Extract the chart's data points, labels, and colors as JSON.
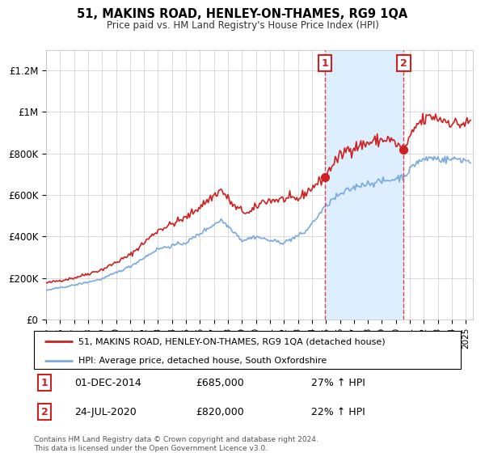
{
  "title": "51, MAKINS ROAD, HENLEY-ON-THAMES, RG9 1QA",
  "subtitle": "Price paid vs. HM Land Registry's House Price Index (HPI)",
  "legend_line1": "51, MAKINS ROAD, HENLEY-ON-THAMES, RG9 1QA (detached house)",
  "legend_line2": "HPI: Average price, detached house, South Oxfordshire",
  "annotation1_date": "01-DEC-2014",
  "annotation1_price": "£685,000",
  "annotation1_hpi": "27% ↑ HPI",
  "annotation2_date": "24-JUL-2020",
  "annotation2_price": "£820,000",
  "annotation2_hpi": "22% ↑ HPI",
  "sale1_year": 2014.92,
  "sale2_year": 2020.56,
  "red_line_color": "#cc2222",
  "blue_line_color": "#7aaadd",
  "shaded_color": "#ddeeff",
  "vline_color": "#dd4444",
  "footnote_line1": "Contains HM Land Registry data © Crown copyright and database right 2024.",
  "footnote_line2": "This data is licensed under the Open Government Licence v3.0.",
  "ylim": [
    0,
    1300000
  ],
  "xmin": 1995,
  "xmax": 2025.5,
  "ytick_vals": [
    0,
    200000,
    400000,
    600000,
    800000,
    1000000,
    1200000
  ],
  "ytick_labels": [
    "£0",
    "£200K",
    "£400K",
    "£600K",
    "£800K",
    "£1M",
    "£1.2M"
  ]
}
